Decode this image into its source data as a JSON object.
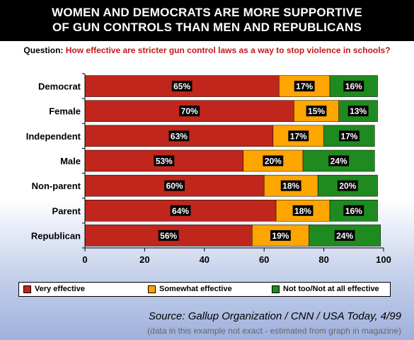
{
  "header": {
    "title_line1": "WOMEN AND DEMOCRATS ARE MORE SUPPORTIVE",
    "title_line2": "OF GUN CONTROLS THAN MEN AND REPUBLICANS"
  },
  "question": {
    "label": "Question:",
    "text": "How effective are stricter gun control laws as a way to stop violence in schools?"
  },
  "chart_data": {
    "type": "bar",
    "orientation": "horizontal",
    "stacked": true,
    "categories": [
      "Democrat",
      "Female",
      "Independent",
      "Male",
      "Non-parent",
      "Parent",
      "Republican"
    ],
    "series": [
      {
        "name": "Very effective",
        "color": "#c0261c",
        "values": [
          65,
          70,
          63,
          53,
          60,
          64,
          56
        ]
      },
      {
        "name": "Somewhat effective",
        "color": "#ffa500",
        "values": [
          17,
          15,
          17,
          20,
          18,
          18,
          19
        ]
      },
      {
        "name": "Not too/Not at all effective",
        "color": "#1f8a1f",
        "values": [
          16,
          13,
          17,
          24,
          20,
          16,
          24
        ]
      }
    ],
    "xlim": [
      0,
      100
    ],
    "xticks": [
      0,
      20,
      40,
      60,
      80,
      100
    ],
    "value_label_suffix": "%",
    "grid": false,
    "legend_position": "bottom"
  },
  "footer": {
    "source": "Source: Gallup Organization / CNN / USA Today, 4/99",
    "note": "(data in this example not exact - estimated from graph in magazine)"
  }
}
